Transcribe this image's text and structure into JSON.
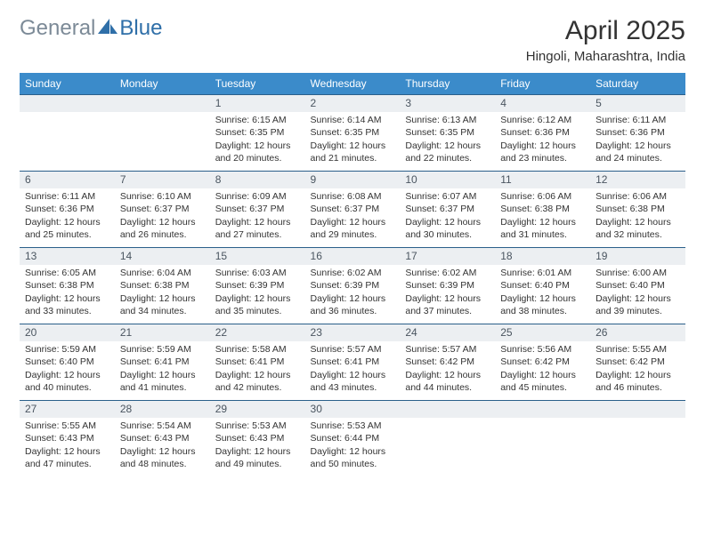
{
  "brand": {
    "part1": "General",
    "part2": "Blue"
  },
  "title": "April 2025",
  "location": "Hingoli, Maharashtra, India",
  "colors": {
    "header_bg": "#3b8bca",
    "band_bg": "#eceff2",
    "band_border": "#2a5f8a",
    "logo_gray": "#7c8a97",
    "logo_blue": "#2f6fa8"
  },
  "day_headers": [
    "Sunday",
    "Monday",
    "Tuesday",
    "Wednesday",
    "Thursday",
    "Friday",
    "Saturday"
  ],
  "weeks": [
    [
      {
        "n": "",
        "lines": []
      },
      {
        "n": "",
        "lines": []
      },
      {
        "n": "1",
        "lines": [
          "Sunrise: 6:15 AM",
          "Sunset: 6:35 PM",
          "Daylight: 12 hours and 20 minutes."
        ]
      },
      {
        "n": "2",
        "lines": [
          "Sunrise: 6:14 AM",
          "Sunset: 6:35 PM",
          "Daylight: 12 hours and 21 minutes."
        ]
      },
      {
        "n": "3",
        "lines": [
          "Sunrise: 6:13 AM",
          "Sunset: 6:35 PM",
          "Daylight: 12 hours and 22 minutes."
        ]
      },
      {
        "n": "4",
        "lines": [
          "Sunrise: 6:12 AM",
          "Sunset: 6:36 PM",
          "Daylight: 12 hours and 23 minutes."
        ]
      },
      {
        "n": "5",
        "lines": [
          "Sunrise: 6:11 AM",
          "Sunset: 6:36 PM",
          "Daylight: 12 hours and 24 minutes."
        ]
      }
    ],
    [
      {
        "n": "6",
        "lines": [
          "Sunrise: 6:11 AM",
          "Sunset: 6:36 PM",
          "Daylight: 12 hours and 25 minutes."
        ]
      },
      {
        "n": "7",
        "lines": [
          "Sunrise: 6:10 AM",
          "Sunset: 6:37 PM",
          "Daylight: 12 hours and 26 minutes."
        ]
      },
      {
        "n": "8",
        "lines": [
          "Sunrise: 6:09 AM",
          "Sunset: 6:37 PM",
          "Daylight: 12 hours and 27 minutes."
        ]
      },
      {
        "n": "9",
        "lines": [
          "Sunrise: 6:08 AM",
          "Sunset: 6:37 PM",
          "Daylight: 12 hours and 29 minutes."
        ]
      },
      {
        "n": "10",
        "lines": [
          "Sunrise: 6:07 AM",
          "Sunset: 6:37 PM",
          "Daylight: 12 hours and 30 minutes."
        ]
      },
      {
        "n": "11",
        "lines": [
          "Sunrise: 6:06 AM",
          "Sunset: 6:38 PM",
          "Daylight: 12 hours and 31 minutes."
        ]
      },
      {
        "n": "12",
        "lines": [
          "Sunrise: 6:06 AM",
          "Sunset: 6:38 PM",
          "Daylight: 12 hours and 32 minutes."
        ]
      }
    ],
    [
      {
        "n": "13",
        "lines": [
          "Sunrise: 6:05 AM",
          "Sunset: 6:38 PM",
          "Daylight: 12 hours and 33 minutes."
        ]
      },
      {
        "n": "14",
        "lines": [
          "Sunrise: 6:04 AM",
          "Sunset: 6:38 PM",
          "Daylight: 12 hours and 34 minutes."
        ]
      },
      {
        "n": "15",
        "lines": [
          "Sunrise: 6:03 AM",
          "Sunset: 6:39 PM",
          "Daylight: 12 hours and 35 minutes."
        ]
      },
      {
        "n": "16",
        "lines": [
          "Sunrise: 6:02 AM",
          "Sunset: 6:39 PM",
          "Daylight: 12 hours and 36 minutes."
        ]
      },
      {
        "n": "17",
        "lines": [
          "Sunrise: 6:02 AM",
          "Sunset: 6:39 PM",
          "Daylight: 12 hours and 37 minutes."
        ]
      },
      {
        "n": "18",
        "lines": [
          "Sunrise: 6:01 AM",
          "Sunset: 6:40 PM",
          "Daylight: 12 hours and 38 minutes."
        ]
      },
      {
        "n": "19",
        "lines": [
          "Sunrise: 6:00 AM",
          "Sunset: 6:40 PM",
          "Daylight: 12 hours and 39 minutes."
        ]
      }
    ],
    [
      {
        "n": "20",
        "lines": [
          "Sunrise: 5:59 AM",
          "Sunset: 6:40 PM",
          "Daylight: 12 hours and 40 minutes."
        ]
      },
      {
        "n": "21",
        "lines": [
          "Sunrise: 5:59 AM",
          "Sunset: 6:41 PM",
          "Daylight: 12 hours and 41 minutes."
        ]
      },
      {
        "n": "22",
        "lines": [
          "Sunrise: 5:58 AM",
          "Sunset: 6:41 PM",
          "Daylight: 12 hours and 42 minutes."
        ]
      },
      {
        "n": "23",
        "lines": [
          "Sunrise: 5:57 AM",
          "Sunset: 6:41 PM",
          "Daylight: 12 hours and 43 minutes."
        ]
      },
      {
        "n": "24",
        "lines": [
          "Sunrise: 5:57 AM",
          "Sunset: 6:42 PM",
          "Daylight: 12 hours and 44 minutes."
        ]
      },
      {
        "n": "25",
        "lines": [
          "Sunrise: 5:56 AM",
          "Sunset: 6:42 PM",
          "Daylight: 12 hours and 45 minutes."
        ]
      },
      {
        "n": "26",
        "lines": [
          "Sunrise: 5:55 AM",
          "Sunset: 6:42 PM",
          "Daylight: 12 hours and 46 minutes."
        ]
      }
    ],
    [
      {
        "n": "27",
        "lines": [
          "Sunrise: 5:55 AM",
          "Sunset: 6:43 PM",
          "Daylight: 12 hours and 47 minutes."
        ]
      },
      {
        "n": "28",
        "lines": [
          "Sunrise: 5:54 AM",
          "Sunset: 6:43 PM",
          "Daylight: 12 hours and 48 minutes."
        ]
      },
      {
        "n": "29",
        "lines": [
          "Sunrise: 5:53 AM",
          "Sunset: 6:43 PM",
          "Daylight: 12 hours and 49 minutes."
        ]
      },
      {
        "n": "30",
        "lines": [
          "Sunrise: 5:53 AM",
          "Sunset: 6:44 PM",
          "Daylight: 12 hours and 50 minutes."
        ]
      },
      {
        "n": "",
        "lines": []
      },
      {
        "n": "",
        "lines": []
      },
      {
        "n": "",
        "lines": []
      }
    ]
  ]
}
